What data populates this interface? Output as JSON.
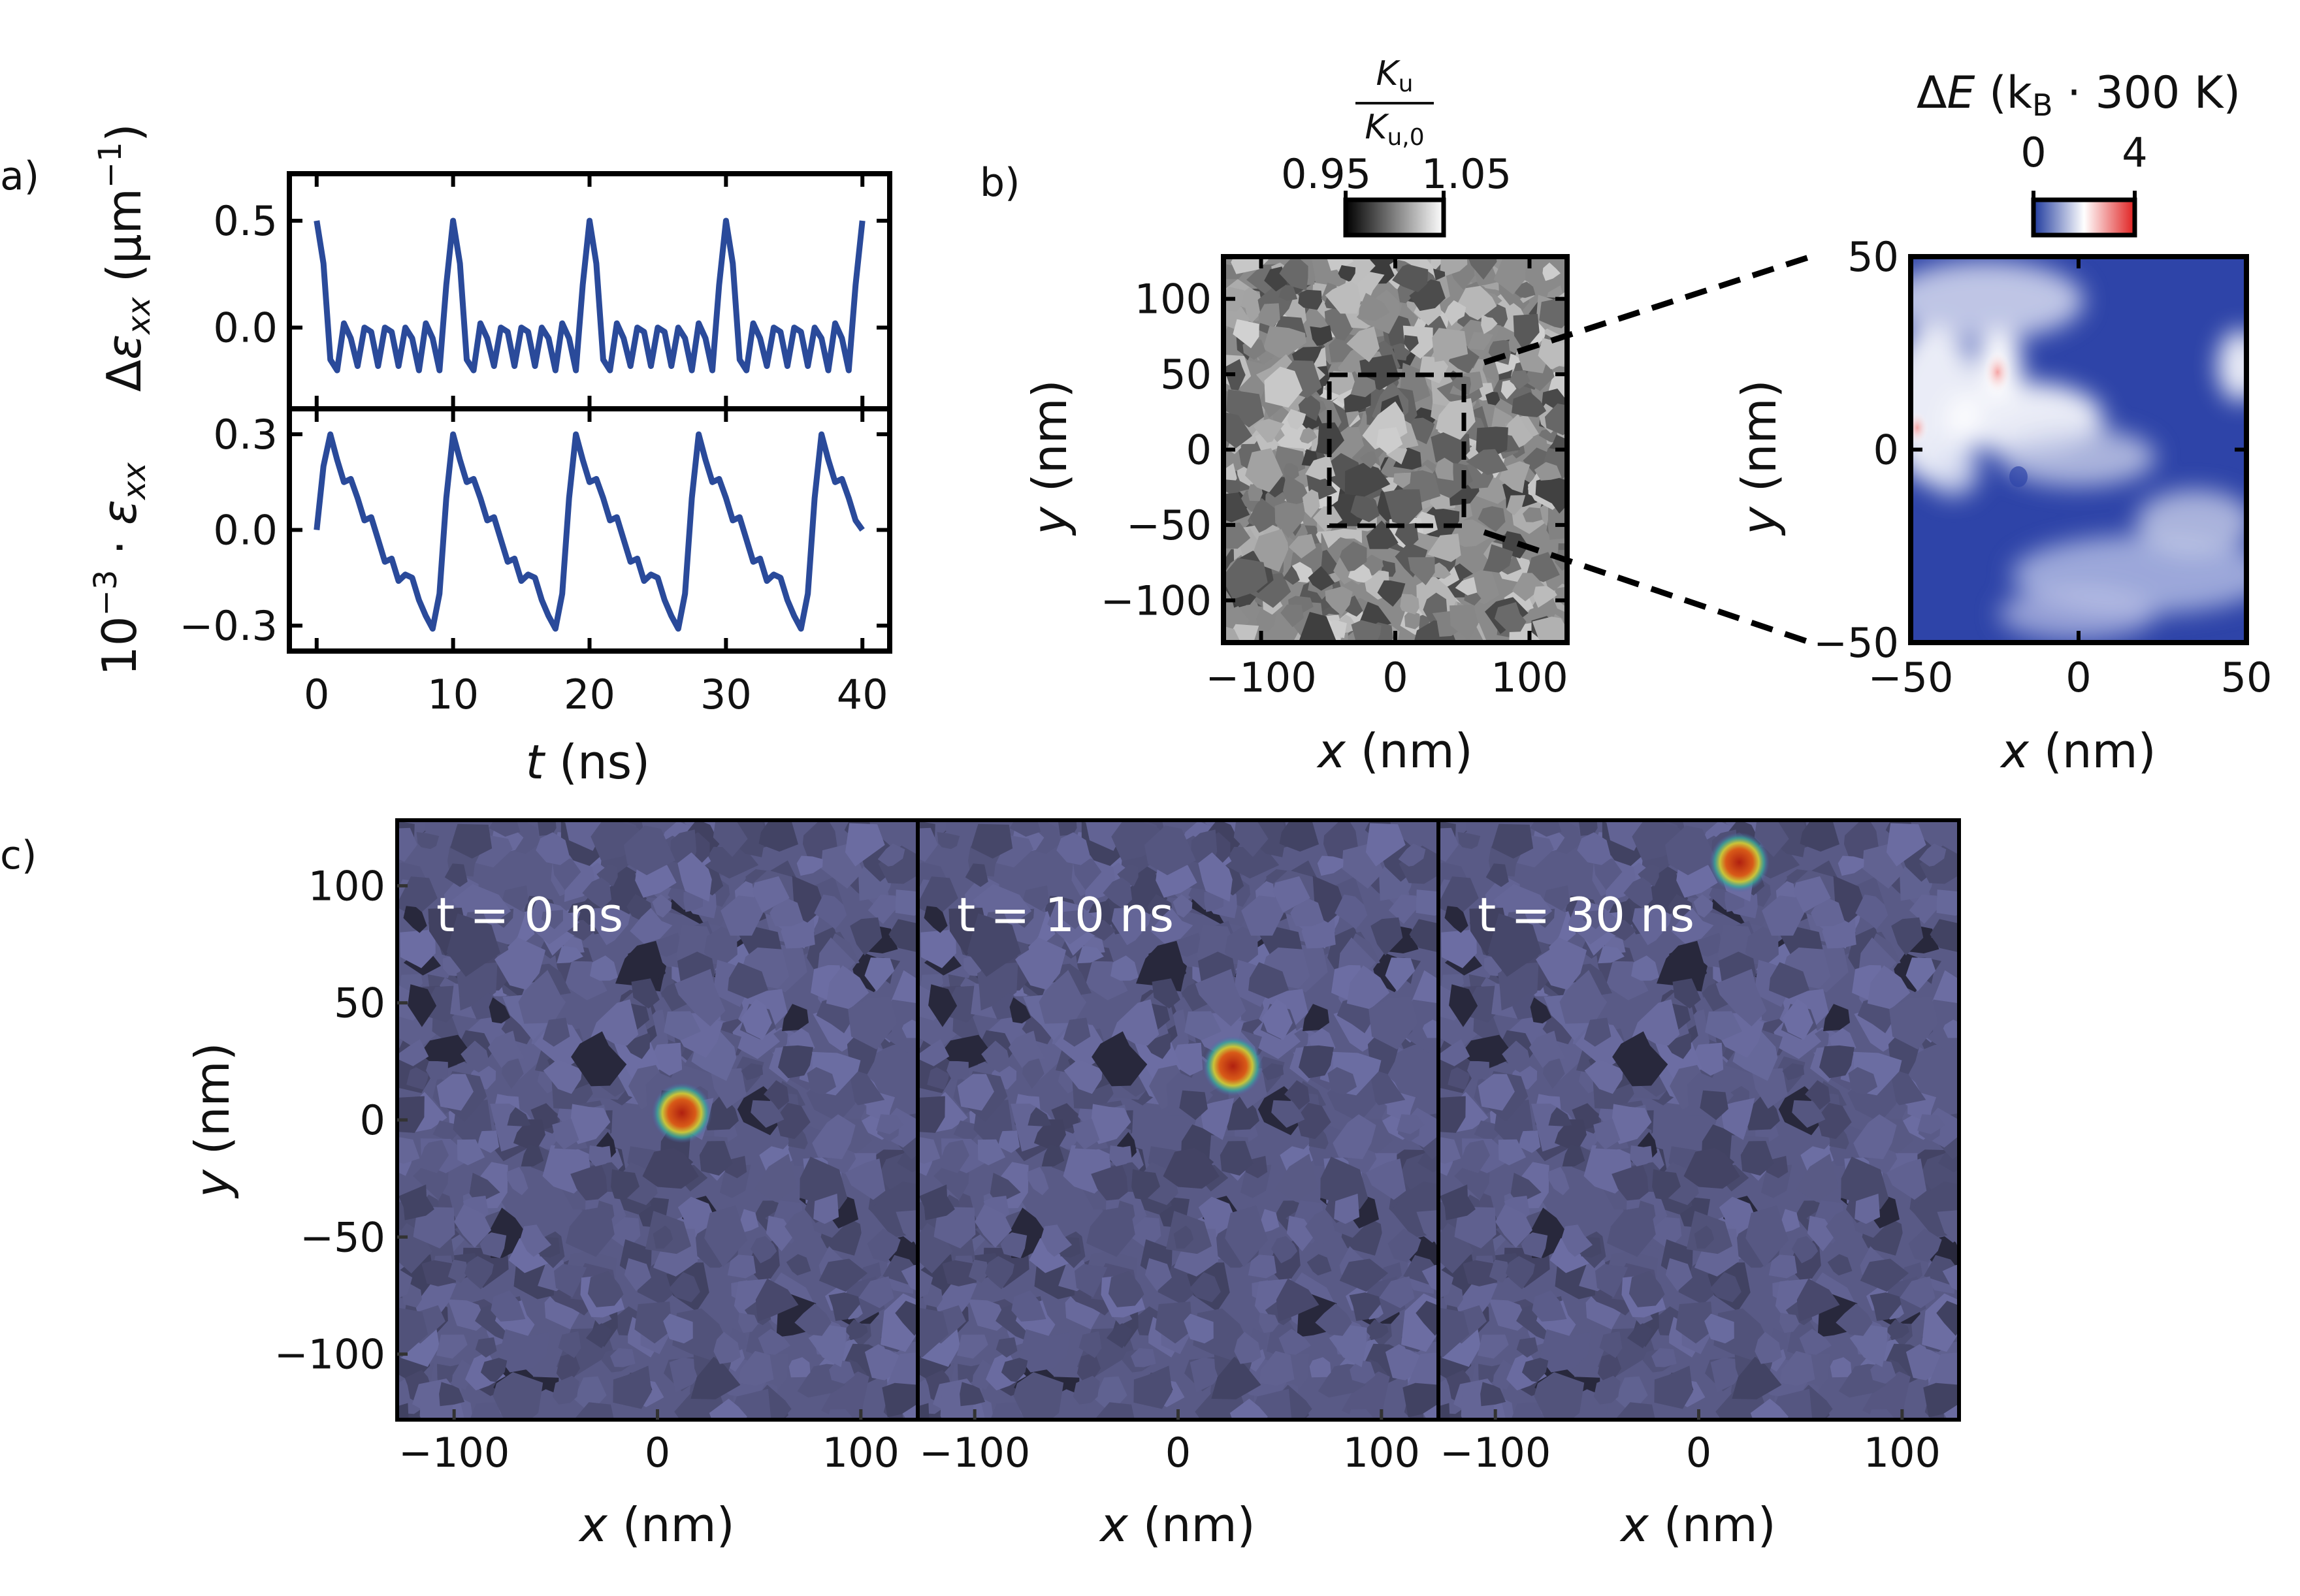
{
  "panel_labels": {
    "a": "a)",
    "b": "b)",
    "c": "c)"
  },
  "chart_data": [
    {
      "id": "a_top",
      "type": "line",
      "panel": "a",
      "ylabel": "Δε_xx (μm⁻¹)",
      "ylabel_parts": {
        "delta": "Δ",
        "symbol": "ε",
        "sub": "xx",
        "unit": "(μm",
        "exp": "−1",
        "close": ")"
      },
      "xlim": [
        -2,
        42
      ],
      "ylim": [
        -0.38,
        0.72
      ],
      "yticks": [
        -0.0,
        0.5
      ],
      "ytick_labels": [
        "0.0",
        "0.5"
      ],
      "color": "#2a4a9a",
      "x": [
        0,
        0.5,
        1,
        1.5,
        2,
        2.5,
        3,
        3.5,
        4,
        4.5,
        5,
        5.5,
        6,
        6.5,
        7,
        7.5,
        8,
        8.5,
        9,
        9.5,
        10,
        10.5,
        11,
        11.5,
        12,
        12.5,
        13,
        13.5,
        14,
        14.5,
        15,
        15.5,
        16,
        16.5,
        17,
        17.5,
        18,
        18.5,
        19,
        19.5,
        20,
        20.5,
        21,
        21.5,
        22,
        22.5,
        23,
        23.5,
        24,
        24.5,
        25,
        25.5,
        26,
        26.5,
        27,
        27.5,
        28,
        28.5,
        29,
        29.5,
        30,
        30.5,
        31,
        31.5,
        32,
        32.5,
        33,
        33.5,
        34,
        34.5,
        35,
        35.5,
        36,
        36.5,
        37,
        37.5,
        38,
        38.5,
        39,
        39.5,
        40
      ],
      "y": [
        0.5,
        0.3,
        -0.15,
        -0.2,
        0.02,
        -0.05,
        -0.18,
        0.0,
        -0.02,
        -0.18,
        0.0,
        -0.02,
        -0.18,
        0.0,
        -0.05,
        -0.2,
        0.02,
        -0.05,
        -0.2,
        0.2,
        0.5,
        0.3,
        -0.15,
        -0.2,
        0.02,
        -0.05,
        -0.18,
        0.0,
        -0.02,
        -0.18,
        0.0,
        -0.02,
        -0.18,
        0.0,
        -0.05,
        -0.2,
        0.02,
        -0.05,
        -0.2,
        0.2,
        0.5,
        0.3,
        -0.15,
        -0.2,
        0.02,
        -0.05,
        -0.18,
        0.0,
        -0.02,
        -0.18,
        0.0,
        -0.02,
        -0.18,
        0.0,
        -0.05,
        -0.2,
        0.02,
        -0.05,
        -0.2,
        0.2,
        0.5,
        0.3,
        -0.15,
        -0.2,
        0.02,
        -0.05,
        -0.18,
        0.0,
        -0.02,
        -0.18,
        0.0,
        -0.02,
        -0.18,
        0.0,
        -0.05,
        -0.2,
        0.02,
        -0.05,
        -0.2,
        0.2,
        0.5
      ]
    },
    {
      "id": "a_bottom",
      "type": "line",
      "panel": "a",
      "ylabel": "10⁻³·ε_xx",
      "ylabel_parts": {
        "base": "10",
        "exp": "−3",
        "dot": " · ",
        "symbol": "ε",
        "sub": "xx"
      },
      "xlabel": "t (ns)",
      "xlabel_parts": {
        "var": "t",
        "unit": " (ns)"
      },
      "xlim": [
        -2,
        42
      ],
      "ylim": [
        -0.38,
        0.38
      ],
      "xticks": [
        0,
        10,
        20,
        30,
        40
      ],
      "xtick_labels": [
        "0",
        "10",
        "20",
        "30",
        "40"
      ],
      "yticks": [
        -0.3,
        0.0,
        0.3
      ],
      "ytick_labels": [
        "−0.3",
        "0.0",
        "0.3"
      ],
      "color": "#2a4a9a",
      "x": [
        0,
        0.5,
        1,
        1.5,
        2,
        2.5,
        3,
        3.5,
        4,
        4.5,
        5,
        5.5,
        6,
        6.5,
        7,
        7.5,
        8,
        8.5,
        9,
        9.5,
        10,
        10.5,
        11,
        11.5,
        12,
        12.5,
        13,
        13.5,
        14,
        14.5,
        15,
        15.5,
        16,
        16.5,
        17,
        17.5,
        18,
        18.5,
        19,
        19.5,
        20,
        20.5,
        21,
        21.5,
        22,
        22.5,
        23,
        23.5,
        24,
        24.5,
        25,
        25.5,
        26,
        26.5,
        27,
        27.5,
        28,
        28.5,
        29,
        29.5,
        30,
        30.5,
        31,
        31.5,
        32,
        32.5,
        33,
        33.5,
        34,
        34.5,
        35,
        35.5,
        36,
        36.5,
        37,
        37.5,
        38,
        38.5,
        39,
        39.5,
        40
      ],
      "y": [
        0.0,
        0.2,
        0.3,
        0.22,
        0.15,
        0.16,
        0.1,
        0.03,
        0.04,
        -0.03,
        -0.1,
        -0.09,
        -0.16,
        -0.14,
        -0.15,
        -0.22,
        -0.27,
        -0.31,
        -0.2,
        0.1,
        0.3,
        0.22,
        0.15,
        0.16,
        0.1,
        0.03,
        0.04,
        -0.03,
        -0.1,
        -0.09,
        -0.16,
        -0.14,
        -0.15,
        -0.22,
        -0.27,
        -0.31,
        -0.2,
        0.1,
        0.3,
        0.22,
        0.15,
        0.16,
        0.1,
        0.03,
        0.04,
        -0.03,
        -0.1,
        -0.09,
        -0.16,
        -0.14,
        -0.15,
        -0.22,
        -0.27,
        -0.31,
        -0.2,
        0.1,
        0.3,
        0.22,
        0.15,
        0.16,
        0.1,
        0.03,
        0.04,
        -0.03,
        -0.1,
        -0.09,
        -0.16,
        -0.14,
        -0.15,
        -0.22,
        -0.27,
        -0.31,
        -0.2,
        0.1,
        0.3,
        0.22,
        0.15,
        0.16,
        0.1,
        0.03,
        0.0
      ]
    },
    {
      "id": "b_left",
      "type": "heatmap",
      "panel": "b",
      "xlabel": "x (nm)",
      "ylabel": "y (nm)",
      "xlim": [
        -128,
        128
      ],
      "ylim": [
        -128,
        128
      ],
      "xticks": [
        -100,
        0,
        100
      ],
      "xtick_labels": [
        "−100",
        "0",
        "100"
      ],
      "yticks": [
        -100,
        -50,
        0,
        50,
        100
      ],
      "ytick_labels": [
        "−100",
        "−50",
        "0",
        "50",
        "100"
      ],
      "colorbar": {
        "label_num": "K",
        "label_num_sub": "u",
        "label_den": "K",
        "label_den_sub": "u,0",
        "min_label": "0.95",
        "max_label": "1.05"
      },
      "inset_box": {
        "x": [
          -50,
          50
        ],
        "y": [
          -50,
          50
        ]
      }
    },
    {
      "id": "b_right",
      "type": "heatmap",
      "panel": "b",
      "xlabel": "x (nm)",
      "ylabel": "y (nm)",
      "xlim": [
        -50,
        50
      ],
      "ylim": [
        -50,
        50
      ],
      "xticks": [
        -50,
        0,
        50
      ],
      "xtick_labels": [
        "−50",
        "0",
        "50"
      ],
      "yticks": [
        -50,
        0,
        50
      ],
      "ytick_labels": [
        "−50",
        "0",
        "50"
      ],
      "colorbar": {
        "title": "ΔE (k_B · 300 K)",
        "title_parts": {
          "delta": "Δ",
          "var": "E",
          "open": " (k",
          "sub": "B",
          "rest": " · 300 K)"
        },
        "min_label": "0",
        "max_label": "4",
        "colors": [
          "#1f3a9e",
          "#ffffff",
          "#e02020"
        ]
      }
    },
    {
      "id": "c_series",
      "type": "heatmap",
      "panel": "c",
      "xlabel": "x (nm)",
      "ylabel": "y (nm)",
      "xlim": [
        -128,
        128
      ],
      "ylim": [
        -128,
        128
      ],
      "xticks": [
        -100,
        0,
        100
      ],
      "xtick_labels": [
        "−100",
        "0",
        "100"
      ],
      "yticks": [
        -100,
        -50,
        0,
        50,
        100
      ],
      "ytick_labels": [
        "−100",
        "−50",
        "0",
        "50",
        "100"
      ],
      "frames": [
        {
          "label": "t = 0 ns",
          "skyrmion": [
            12,
            3
          ]
        },
        {
          "label": "t = 10 ns",
          "skyrmion": [
            27,
            23
          ]
        },
        {
          "label": "t = 30 ns",
          "skyrmion": [
            20,
            110
          ]
        }
      ]
    }
  ]
}
